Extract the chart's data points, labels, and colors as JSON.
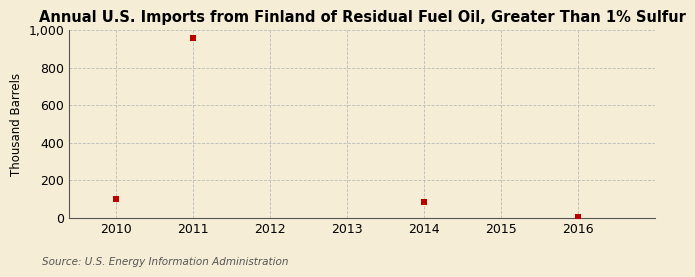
{
  "title": "Annual U.S. Imports from Finland of Residual Fuel Oil, Greater Than 1% Sulfur",
  "ylabel": "Thousand Barrels",
  "source": "Source: U.S. Energy Information Administration",
  "background_color": "#f5edd5",
  "plot_bg_color": "#f5edd5",
  "data_x": [
    2010,
    2011,
    2014,
    2016
  ],
  "data_y": [
    100,
    957,
    85,
    5
  ],
  "marker_color": "#bb0000",
  "marker_size": 20,
  "xlim": [
    2009.4,
    2017.0
  ],
  "ylim": [
    0,
    1000
  ],
  "yticks": [
    0,
    200,
    400,
    600,
    800,
    1000
  ],
  "ytick_labels": [
    "0",
    "200",
    "400",
    "600",
    "800",
    "1,000"
  ],
  "xticks": [
    2010,
    2011,
    2012,
    2013,
    2014,
    2015,
    2016
  ],
  "grid_color": "#bbbbbb",
  "title_fontsize": 10.5,
  "label_fontsize": 8.5,
  "tick_fontsize": 9,
  "source_fontsize": 7.5
}
